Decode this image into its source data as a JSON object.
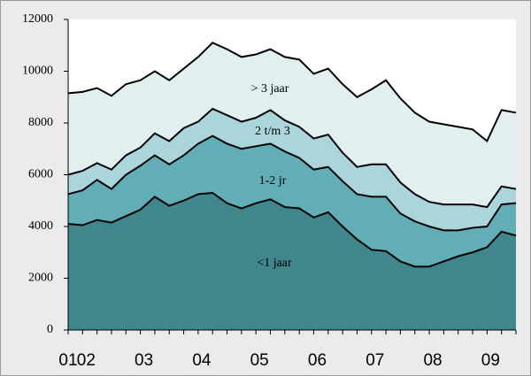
{
  "chart_data": {
    "type": "stacked_area",
    "categories": [
      "01",
      "02",
      null,
      null,
      null,
      "03",
      null,
      null,
      null,
      "04",
      null,
      null,
      null,
      "05",
      null,
      null,
      null,
      "06",
      null,
      null,
      null,
      "07",
      null,
      null,
      null,
      "08",
      null,
      null,
      null,
      "09",
      null,
      null
    ],
    "ylim": [
      0,
      12000
    ],
    "yticks": [
      0,
      2000,
      4000,
      6000,
      8000,
      10000,
      12000
    ],
    "grid": false,
    "series": [
      {
        "name": "<1 jaar",
        "color": "#3f878d",
        "values": [
          4100,
          4050,
          4250,
          4150,
          4400,
          4650,
          5150,
          4800,
          5000,
          5250,
          5300,
          4900,
          4700,
          4900,
          5050,
          4750,
          4700,
          4350,
          4550,
          4000,
          3500,
          3100,
          3050,
          2650,
          2450,
          2450,
          2650,
          2850,
          3000,
          3200,
          3800,
          3650
        ]
      },
      {
        "name": "1-2 jr",
        "color": "#62aeb6",
        "values": [
          1150,
          1350,
          1550,
          1300,
          1600,
          1700,
          1600,
          1600,
          1750,
          1950,
          2200,
          2300,
          2300,
          2200,
          2150,
          2150,
          1950,
          1850,
          1750,
          1750,
          1750,
          2050,
          2100,
          1850,
          1750,
          1550,
          1200,
          1000,
          950,
          800,
          1050,
          1250
        ]
      },
      {
        "name": "2 t/m 3",
        "color": "#aad5da",
        "values": [
          750,
          750,
          650,
          750,
          750,
          700,
          850,
          900,
          1050,
          850,
          1050,
          1100,
          1050,
          1100,
          1300,
          1200,
          1200,
          1200,
          1250,
          1100,
          1050,
          1250,
          1250,
          1200,
          1050,
          950,
          1000,
          1000,
          900,
          750,
          700,
          550
        ]
      },
      {
        "name": "> 3 jaar",
        "color": "#e1eff1",
        "values": [
          3150,
          3050,
          2900,
          2850,
          2750,
          2600,
          2400,
          2350,
          2300,
          2500,
          2550,
          2550,
          2500,
          2450,
          2350,
          2450,
          2600,
          2500,
          2550,
          2650,
          2700,
          2900,
          3250,
          3250,
          3150,
          3100,
          3100,
          3000,
          2900,
          2550,
          2950,
          2950
        ]
      }
    ]
  }
}
